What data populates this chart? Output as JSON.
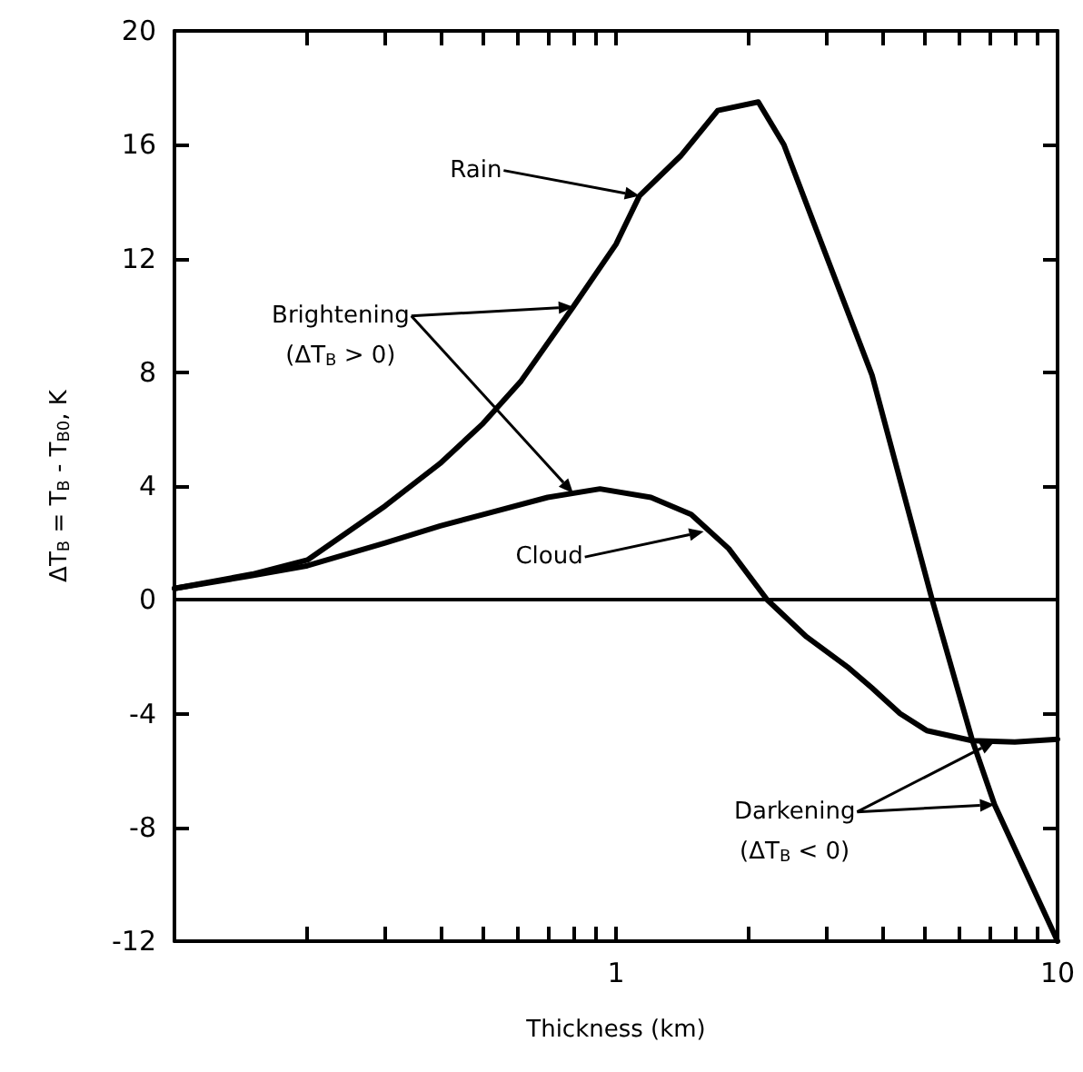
{
  "chart_data": {
    "type": "line",
    "xlabel": "Thickness (km)",
    "ylabel": "ΔT$_{B}$ = T$_{B}$ - T$_{B0}$, K",
    "log": "x",
    "grid": false,
    "legend": false,
    "marker": "none",
    "line_style": "solid",
    "xlim": [
      0.1,
      10
    ],
    "ylim": [
      -12,
      20
    ],
    "xticks": [
      {
        "value": 0.1,
        "label": null
      },
      {
        "value": 0.2,
        "label": null
      },
      {
        "value": 0.3,
        "label": null
      },
      {
        "value": 0.4,
        "label": null
      },
      {
        "value": 0.5,
        "label": null
      },
      {
        "value": 0.6,
        "label": null
      },
      {
        "value": 0.7,
        "label": null
      },
      {
        "value": 0.8,
        "label": null
      },
      {
        "value": 0.9,
        "label": null
      },
      1,
      {
        "value": 2,
        "label": null
      },
      {
        "value": 3,
        "label": null
      },
      {
        "value": 4,
        "label": null
      },
      {
        "value": 5,
        "label": null
      },
      {
        "value": 6,
        "label": null
      },
      {
        "value": 7,
        "label": null
      },
      {
        "value": 8,
        "label": null
      },
      {
        "value": 9,
        "label": null
      },
      10
    ],
    "yticks": [
      -12,
      -8,
      -4,
      0,
      4,
      8,
      12,
      16,
      20
    ],
    "ref_lines": [
      {
        "axis": "y",
        "value": 0,
        "color": "#000000"
      }
    ],
    "series": [
      {
        "color": "#000000",
        "x": [
          0.1,
          0.15,
          0.2,
          0.3,
          0.4,
          0.5,
          0.61,
          0.8,
          1.0,
          1.13,
          1.4,
          1.7,
          2.1,
          2.4,
          2.78,
          3.8,
          5.2,
          6.4,
          7.2,
          10
        ],
        "values": [
          0.4,
          0.9,
          1.4,
          3.3,
          4.8,
          6.2,
          7.7,
          10.3,
          12.5,
          14.2,
          15.6,
          17.2,
          17.5,
          16.0,
          13.4,
          7.9,
          0,
          -4.9,
          -7.2,
          -12
        ]
      },
      {
        "color": "#000000",
        "x": [
          0.1,
          0.15,
          0.2,
          0.3,
          0.4,
          0.5,
          0.7,
          0.92,
          1.2,
          1.48,
          1.8,
          2.2,
          2.7,
          3.37,
          3.8,
          4.4,
          5.06,
          6.4,
          8,
          10
        ],
        "values": [
          0.4,
          0.85,
          1.2,
          2.0,
          2.6,
          3.0,
          3.6,
          3.9,
          3.6,
          3.0,
          1.8,
          0,
          -1.3,
          -2.4,
          -3.1,
          -4.0,
          -4.6,
          -4.95,
          -5.0,
          -4.9
        ]
      }
    ],
    "annotations": [
      {
        "text": "Rain",
        "x": 1.13,
        "y": 14.2
      },
      {
        "text": "Brightening\n(ΔT$_{B}$ > 0)",
        "x": 0.8,
        "y": 10.3
      },
      {
        "text": "Cloud",
        "x": 1.58,
        "y": 2.4
      },
      {
        "text": "Darkening\n(ΔT$_{B}$ < 0)",
        "x": 7.2,
        "y": -7.2
      }
    ]
  }
}
